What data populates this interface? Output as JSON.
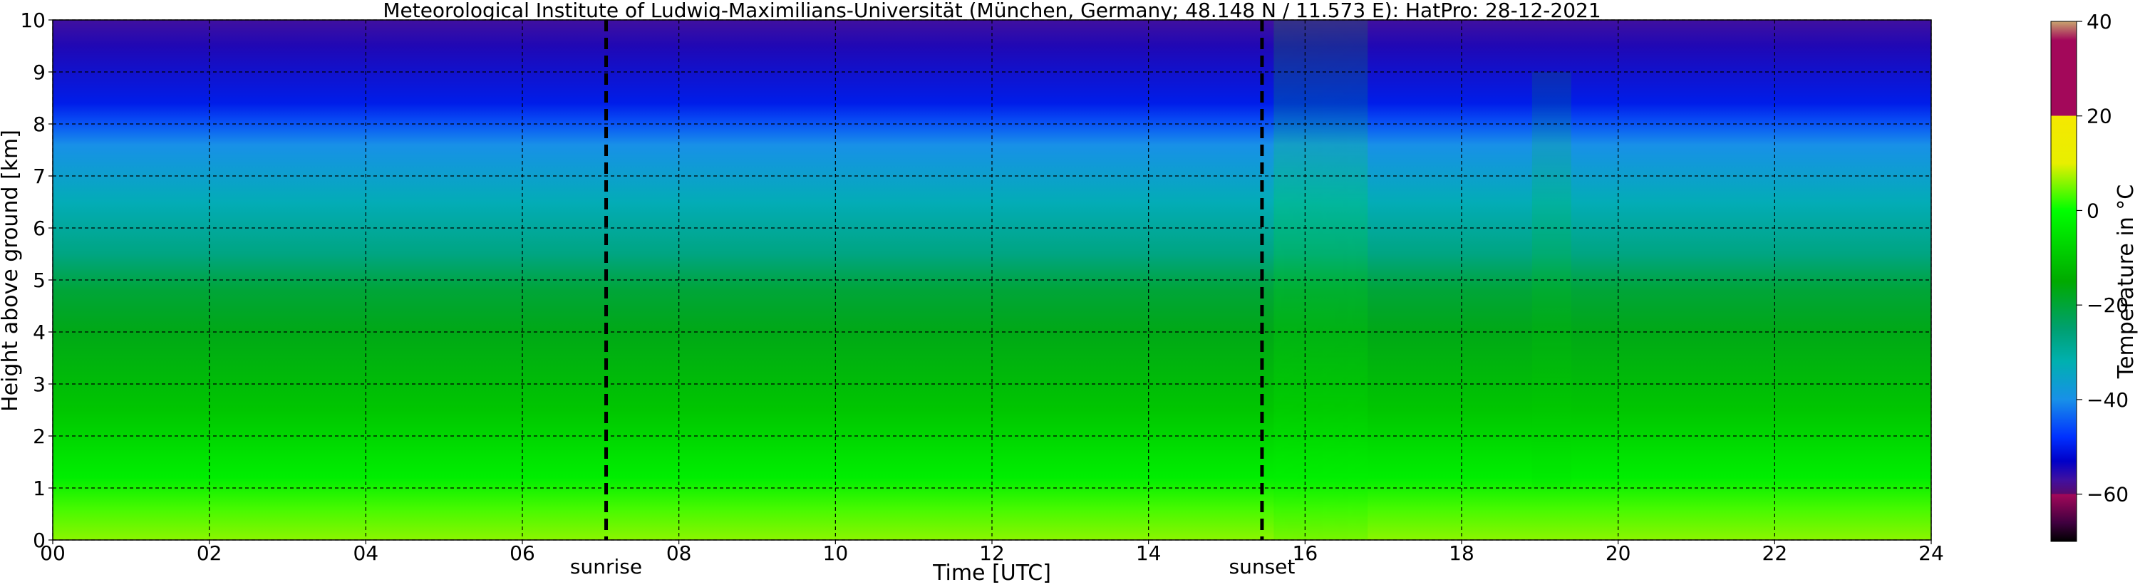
{
  "chart_data": {
    "type": "heatmap",
    "title": "Meteorological Institute of Ludwig-Maximilians-Universität (München, Germany; 48.148 N / 11.573 E):    HatPro: 28-12-2021",
    "xlabel": "Time [UTC]",
    "ylabel": "Height above ground [km]",
    "xlim": [
      0,
      24
    ],
    "ylim": [
      0,
      10
    ],
    "x_ticks": [
      "00",
      "02",
      "04",
      "06",
      "08",
      "10",
      "12",
      "14",
      "16",
      "18",
      "20",
      "22",
      "24"
    ],
    "y_ticks": [
      "0",
      "1",
      "2",
      "3",
      "4",
      "5",
      "6",
      "7",
      "8",
      "9",
      "10"
    ],
    "grid": true,
    "events": [
      {
        "label": "sunrise",
        "x": 7.07
      },
      {
        "label": "sunset",
        "x": 15.45
      }
    ],
    "colorbar": {
      "label": "Temperature in $^\\circ$C",
      "min": -70,
      "max": 40,
      "ticks": [
        "40",
        "20",
        "0",
        "−20",
        "−40",
        "−60"
      ],
      "tick_values": [
        40,
        20,
        0,
        -20,
        -40,
        -60
      ],
      "stops": [
        {
          "value": 40,
          "color": "#c8a46e"
        },
        {
          "value": 36,
          "color": "#a3085a"
        },
        {
          "value": 20,
          "color": "#a3085a"
        },
        {
          "value": 20,
          "color": "#f5e800"
        },
        {
          "value": 10,
          "color": "#e8ef00"
        },
        {
          "value": 0,
          "color": "#00ff00"
        },
        {
          "value": -15,
          "color": "#00aa00"
        },
        {
          "value": -25,
          "color": "#00a070"
        },
        {
          "value": -32,
          "color": "#00b0b0"
        },
        {
          "value": -40,
          "color": "#1890e8"
        },
        {
          "value": -48,
          "color": "#0030ff"
        },
        {
          "value": -53,
          "color": "#0000c8"
        },
        {
          "value": -57,
          "color": "#4010a0"
        },
        {
          "value": -60,
          "color": "#5a0a6a"
        },
        {
          "value": -60,
          "color": "#a3085a"
        },
        {
          "value": -66,
          "color": "#400040"
        },
        {
          "value": -70,
          "color": "#000000"
        }
      ]
    },
    "profile": {
      "heights_km": [
        0,
        0.6,
        1.2,
        1.6,
        2.5,
        4.0,
        4.8,
        5.5,
        6.5,
        7.6,
        8.0,
        8.4,
        9.5,
        10
      ],
      "temperature_c": [
        6,
        3,
        -3,
        -5,
        -10,
        -17,
        -20,
        -27,
        -33,
        -40,
        -45,
        -50,
        -55,
        -57
      ]
    },
    "noted_features": [
      "Warm surface layer (yellow) near 0–1 km throughout the day",
      "Warmer column around 15.7–16.5 h after sunset",
      "Vertical streak structures near 19 h"
    ]
  }
}
